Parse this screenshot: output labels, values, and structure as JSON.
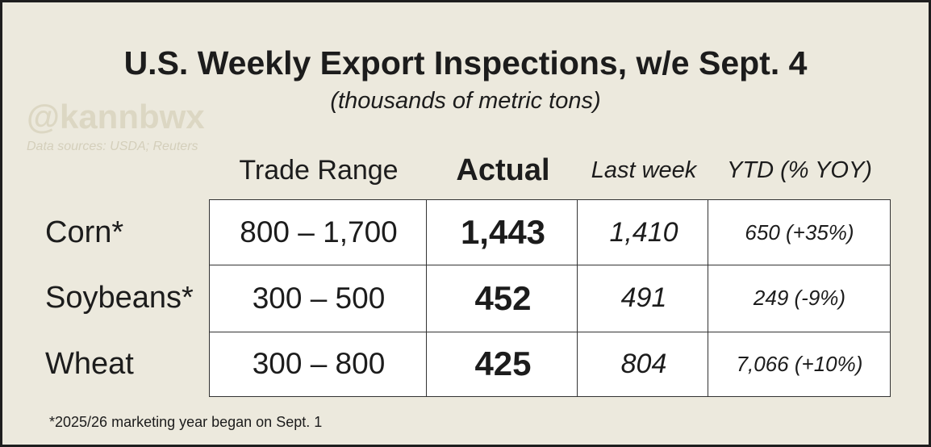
{
  "header": {
    "title": "U.S. Weekly Export Inspections, w/e Sept. 4",
    "subtitle": "(thousands of metric tons)",
    "watermark": "@kannbwx",
    "sources": "Data sources: USDA; Reuters"
  },
  "table": {
    "columns": [
      "Trade Range",
      "Actual",
      "Last week",
      "YTD (% YOY)"
    ],
    "rows": [
      [
        "Corn*",
        "800 – 1,700",
        "1,443",
        "1,410",
        "650 (+35%)"
      ],
      [
        "Soybeans*",
        "300 – 500",
        "452",
        "491",
        "249 (-9%)"
      ],
      [
        "Wheat",
        "300 – 800",
        "425",
        "804",
        "7,066 (+10%)"
      ]
    ]
  },
  "footnote": "*2025/26 marketing year began on Sept. 1"
}
